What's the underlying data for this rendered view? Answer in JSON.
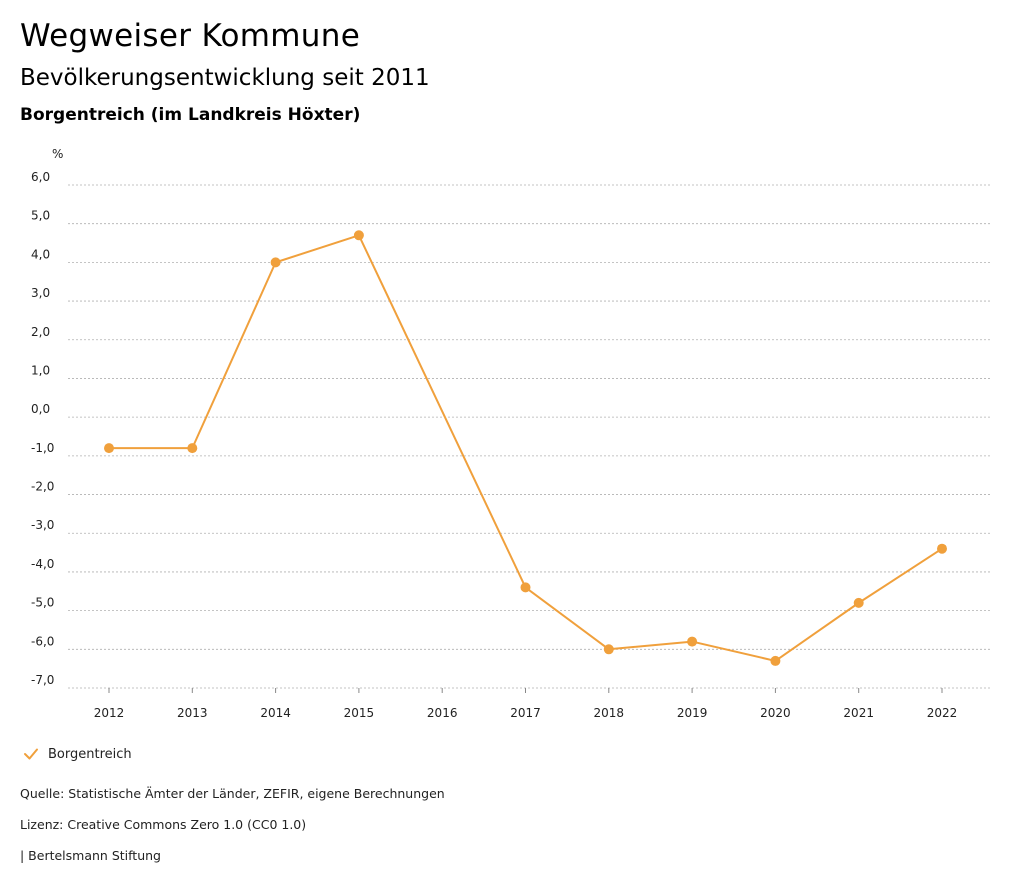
{
  "header": {
    "title": "Wegweiser Kommune",
    "subtitle": "Bevölkerungsentwicklung seit 2011",
    "region": "Borgentreich (im Landkreis Höxter)"
  },
  "chart_data": {
    "type": "line",
    "title": "Bevölkerungsentwicklung seit 2011",
    "ylabel": "%",
    "xlabel": "",
    "ylim": [
      -7.0,
      6.0
    ],
    "yticks": [
      6.0,
      5.0,
      4.0,
      3.0,
      2.0,
      1.0,
      0.0,
      -1.0,
      -2.0,
      -3.0,
      -4.0,
      -5.0,
      -6.0,
      -7.0
    ],
    "ytick_labels": [
      "6,0",
      "5,0",
      "4,0",
      "3,0",
      "2,0",
      "1,0",
      "0,0",
      "-1,0",
      "-2,0",
      "-3,0",
      "-4,0",
      "-5,0",
      "-6,0",
      "-7,0"
    ],
    "categories": [
      "2012",
      "2013",
      "2014",
      "2015",
      "2016",
      "2017",
      "2018",
      "2019",
      "2020",
      "2021",
      "2022"
    ],
    "series": [
      {
        "name": "Borgentreich",
        "color": "#f0a03c",
        "values": [
          -0.8,
          -0.8,
          4.0,
          4.7,
          null,
          -4.4,
          -6.0,
          -5.8,
          -6.3,
          -4.8,
          -3.4
        ]
      }
    ],
    "grid": true,
    "legend": "bottom-left"
  },
  "legend": {
    "label": "Borgentreich",
    "icon": "check-icon"
  },
  "footer": {
    "source": "Quelle: Statistische Ämter der Länder, ZEFIR, eigene Berechnungen",
    "license": "Lizenz: Creative Commons Zero 1.0 (CC0 1.0)",
    "publisher": "| Bertelsmann Stiftung"
  },
  "colors": {
    "series": "#f0a03c",
    "grid": "#b0b0b0",
    "axis_text": "#222222"
  }
}
